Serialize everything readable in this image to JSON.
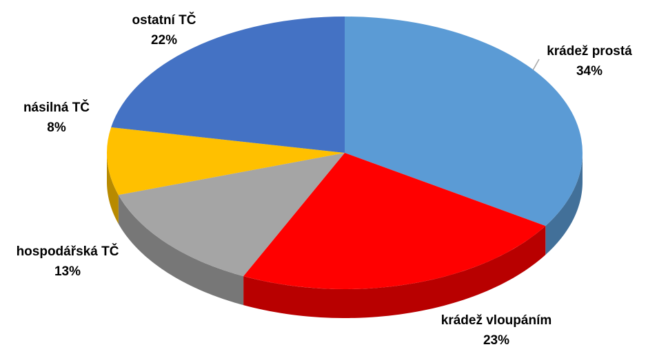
{
  "chart_data": {
    "type": "pie",
    "categories": [
      "krádež prostá",
      "krádež vloupáním",
      "hospodářská TČ",
      "násilná TČ",
      "ostatní TČ"
    ],
    "values": [
      34,
      23,
      13,
      8,
      22
    ],
    "value_labels": [
      "34%",
      "23%",
      "13%",
      "8%",
      "22%"
    ],
    "colors": [
      "#5b9bd5",
      "#ff0000",
      "#a5a5a5",
      "#ffc000",
      "#4472c4"
    ]
  }
}
